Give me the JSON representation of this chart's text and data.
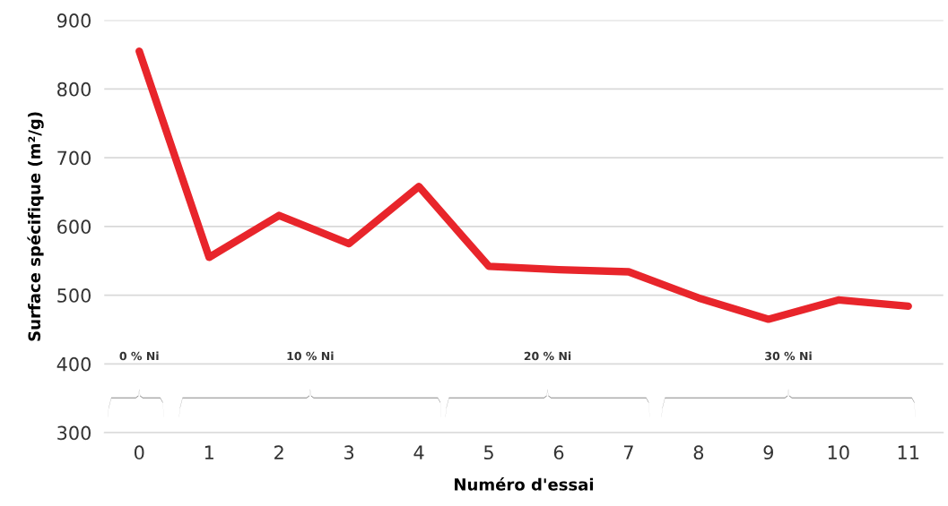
{
  "chart_data": {
    "type": "line",
    "xlabel": "Numéro d'essai",
    "ylabel": "Surface spécifique (m²/g)",
    "categories": [
      "0",
      "1",
      "2",
      "3",
      "4",
      "5",
      "6",
      "7",
      "8",
      "9",
      "10",
      "11"
    ],
    "series": [
      {
        "color": "#e8252b",
        "values": [
          855,
          555,
          616,
          575,
          658,
          542,
          537,
          534,
          496,
          465,
          493,
          484
        ]
      }
    ],
    "ylim": [
      300,
      900
    ],
    "yticks": [
      300,
      400,
      500,
      600,
      700,
      800,
      900
    ],
    "grid": "y",
    "marker": "none",
    "line_style": "solid",
    "annotations": [
      "0 % Ni",
      "10 % Ni",
      "20 % Ni",
      "30 % Ni"
    ]
  }
}
